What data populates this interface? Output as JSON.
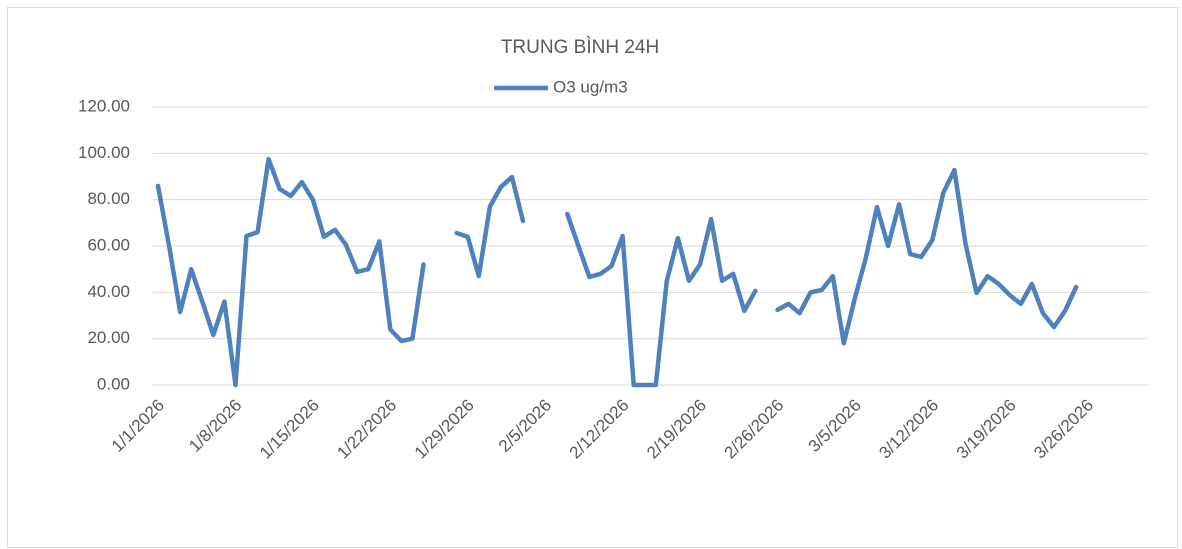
{
  "chart_data": {
    "type": "line",
    "title": "TRUNG BÌNH 24H",
    "categories": [
      "1/1/2026",
      null,
      null,
      null,
      null,
      null,
      null,
      "1/8/2026",
      null,
      null,
      null,
      null,
      null,
      null,
      "1/15/2026",
      null,
      null,
      null,
      null,
      null,
      null,
      "1/22/2026",
      null,
      null,
      null,
      null,
      null,
      null,
      "1/29/2026",
      null,
      null,
      null,
      null,
      null,
      null,
      "2/5/2026",
      null,
      null,
      null,
      null,
      null,
      null,
      "2/12/2026",
      null,
      null,
      null,
      null,
      null,
      null,
      "2/19/2026",
      null,
      null,
      null,
      null,
      null,
      null,
      "2/26/2026",
      null,
      null,
      null,
      null,
      null,
      null,
      "3/5/2026",
      null,
      null,
      null,
      null,
      null,
      null,
      "3/12/2026",
      null,
      null,
      null,
      null,
      null,
      null,
      "3/19/2026",
      null,
      null,
      null,
      null,
      null,
      null,
      "3/26/2026",
      null,
      null,
      null,
      null,
      null
    ],
    "series": [
      {
        "name": "O3 ug/m3",
        "color": "#4f81bd",
        "values": [
          86,
          60,
          31.5,
          50,
          36,
          21.6,
          36,
          0,
          64.3,
          66,
          97.5,
          84.6,
          81.6,
          87.6,
          80,
          64,
          67,
          60.4,
          48.8,
          50,
          62,
          24,
          19,
          20,
          52,
          null,
          null,
          65.6,
          64,
          47,
          77,
          85.5,
          89.8,
          70.8,
          null,
          null,
          null,
          73.8,
          60,
          46.6,
          48,
          51.4,
          64.3,
          0,
          0,
          0,
          45,
          63.4,
          45,
          52,
          71.6,
          45,
          48,
          32,
          40.6,
          null,
          32.4,
          35,
          31,
          40,
          41,
          47,
          18,
          37.5,
          55,
          76.8,
          60,
          78,
          56.5,
          55.3,
          62.6,
          83,
          92.8,
          61,
          39.7,
          47,
          43.6,
          38.8,
          35,
          43.6,
          31,
          25,
          32,
          42.3,
          null,
          null,
          null,
          null,
          null,
          null
        ]
      }
    ],
    "ylim": [
      0,
      120
    ],
    "yticks": [
      {
        "value": 0,
        "label": "0.00"
      },
      {
        "value": 20,
        "label": "20.00"
      },
      {
        "value": 40,
        "label": "40.00"
      },
      {
        "value": 60,
        "label": "60.00"
      },
      {
        "value": 80,
        "label": "80.00"
      },
      {
        "value": 100,
        "label": "100.00"
      },
      {
        "value": 120,
        "label": "120.00"
      }
    ],
    "grid": true,
    "legend": "top"
  }
}
